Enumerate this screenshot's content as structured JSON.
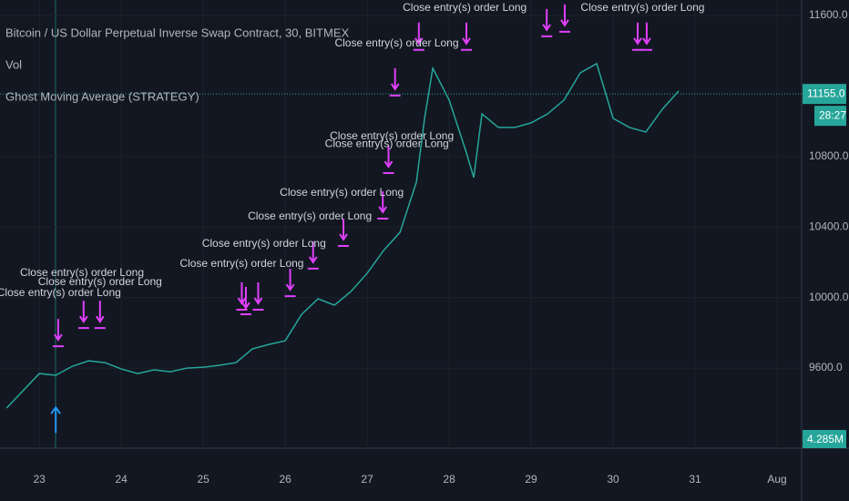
{
  "chart_data": {
    "type": "line",
    "title": "Bitcoin / US Dollar Perpetual Inverse Swap Contract, 30, BITMEX",
    "indicators": [
      "Vol",
      "Ghost Moving Average (STRATEGY)"
    ],
    "x": [
      22.6,
      23.0,
      23.2,
      23.4,
      23.6,
      23.8,
      24.0,
      24.2,
      24.4,
      24.6,
      24.8,
      25.0,
      25.2,
      25.4,
      25.6,
      25.8,
      26.0,
      26.2,
      26.4,
      26.6,
      26.8,
      27.0,
      27.2,
      27.4,
      27.6,
      27.7,
      27.8,
      28.0,
      28.2,
      28.3,
      28.4,
      28.6,
      28.8,
      29.0,
      29.2,
      29.4,
      29.6,
      29.8,
      30.0,
      30.2,
      30.4,
      30.6,
      30.8
    ],
    "series": [
      {
        "color": "#26a69a",
        "values": [
          9373,
          9569,
          9559,
          9610,
          9641,
          9631,
          9595,
          9569,
          9590,
          9579,
          9600,
          9605,
          9616,
          9631,
          9709,
          9734,
          9755,
          9905,
          9993,
          9957,
          10034,
          10138,
          10267,
          10370,
          10655,
          11017,
          11301,
          11120,
          10836,
          10681,
          11042,
          10965,
          10965,
          10991,
          11042,
          11120,
          11275,
          11327,
          11017,
          10965,
          10939,
          11068,
          11172
        ]
      }
    ],
    "xlim": [
      22.52,
      32.3
    ],
    "xticks": [
      23,
      24,
      25,
      26,
      27,
      28,
      29,
      30,
      31,
      {
        "value": 32,
        "label": "Aug"
      }
    ],
    "ylim": [
      9156,
      11688
    ],
    "yticks": [
      {
        "value": 9600,
        "label": "9600.0"
      },
      {
        "value": 10000,
        "label": "10000.0"
      },
      {
        "value": 10400,
        "label": "10400.0"
      },
      {
        "value": 10800,
        "label": "10800.0"
      },
      {
        "value": 11600,
        "label": "11600.0"
      }
    ],
    "price_line": {
      "value": 11155,
      "label": "11155.0",
      "color": "#26a69a"
    },
    "countdown": "28:27",
    "volume_label": "4.285M",
    "marker_color": "#e040fb",
    "exit_markers": [
      {
        "x": 23.23,
        "y": 9724
      },
      {
        "x": 23.54,
        "y": 9827
      },
      {
        "x": 23.74,
        "y": 9827
      },
      {
        "x": 25.47,
        "y": 9931
      },
      {
        "x": 25.52,
        "y": 9905
      },
      {
        "x": 25.67,
        "y": 9931
      },
      {
        "x": 26.06,
        "y": 10008
      },
      {
        "x": 26.34,
        "y": 10164
      },
      {
        "x": 26.71,
        "y": 10293
      },
      {
        "x": 27.19,
        "y": 10448
      },
      {
        "x": 27.26,
        "y": 10706
      },
      {
        "x": 27.34,
        "y": 11146
      },
      {
        "x": 27.63,
        "y": 11405
      },
      {
        "x": 28.21,
        "y": 11405
      },
      {
        "x": 29.19,
        "y": 11482
      },
      {
        "x": 29.41,
        "y": 11508
      },
      {
        "x": 30.3,
        "y": 11405
      },
      {
        "x": 30.41,
        "y": 11405
      }
    ],
    "entry_marker": {
      "x": 23.2,
      "y": 9310,
      "color": "#2196f3"
    },
    "annotations": [
      {
        "text": "Close entry(s) order Long",
        "x": 23.24,
        "y": 10024
      },
      {
        "text": "Close entry(s) order Long",
        "x": 23.52,
        "y": 10138
      },
      {
        "text": "Close entry(s) order Long",
        "x": 23.74,
        "y": 10086
      },
      {
        "text": "Close entry(s) order Long",
        "x": 25.47,
        "y": 10190
      },
      {
        "text": "Close entry(s) order Long",
        "x": 25.74,
        "y": 10303
      },
      {
        "text": "Close entry(s) order Long",
        "x": 26.3,
        "y": 10458
      },
      {
        "text": "Close entry(s) order Long",
        "x": 26.69,
        "y": 10593
      },
      {
        "text": "Close entry(s) order Long",
        "x": 27.3,
        "y": 10913
      },
      {
        "text": "Close entry(s) order Long",
        "x": 27.24,
        "y": 10871
      },
      {
        "text": "Close entry(s) order Long",
        "x": 27.36,
        "y": 11441
      },
      {
        "text": "Close entry(s) order Long",
        "x": 28.19,
        "y": 11642
      },
      {
        "text": "Close entry(s) order Long",
        "x": 30.36,
        "y": 11642
      }
    ]
  }
}
